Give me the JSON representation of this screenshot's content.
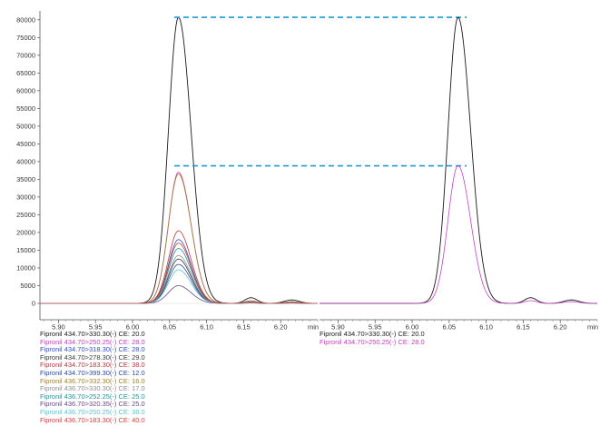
{
  "chart_data": [
    {
      "type": "line",
      "panel": "left",
      "title": "",
      "xlabel": "min",
      "ylabel": "",
      "xlim": [
        5.875,
        6.25
      ],
      "ylim": [
        0,
        82000
      ],
      "x_ticks": [
        "5.90",
        "5.95",
        "6.00",
        "6.05",
        "6.10",
        "6.15",
        "6.20"
      ],
      "x_tick_values": [
        5.9,
        5.95,
        6.0,
        6.05,
        6.1,
        6.15,
        6.2
      ],
      "y_ticks": [
        "0",
        "5000",
        "10000",
        "15000",
        "20000",
        "25000",
        "30000",
        "35000",
        "40000",
        "45000",
        "50000",
        "55000",
        "60000",
        "65000",
        "70000",
        "75000",
        "80000"
      ],
      "y_tick_values": [
        0,
        5000,
        10000,
        15000,
        20000,
        25000,
        30000,
        35000,
        40000,
        45000,
        50000,
        55000,
        60000,
        65000,
        70000,
        75000,
        80000
      ],
      "grid": false,
      "legend_position": "bottom-left",
      "series": [
        {
          "name": "Fipronil 434.70>330.30(-) CE: 20.0",
          "color": "#1a1a1a",
          "peak_rt": 6.062,
          "peak_height": 80700,
          "sigma_left": 0.0135,
          "sigma_right": 0.017
        },
        {
          "name": "Fipronil 434.70>250.25(-) CE: 28.0",
          "color": "#c040c0",
          "peak_rt": 6.062,
          "peak_height": 37000,
          "sigma_left": 0.0135,
          "sigma_right": 0.017
        },
        {
          "name": "Fipronil 434.70>318.30(-) CE: 28.0",
          "color": "#3050c0",
          "peak_rt": 6.062,
          "peak_height": 18000,
          "sigma_left": 0.0135,
          "sigma_right": 0.017
        },
        {
          "name": "Fipronil 434.70>278.30(-) CE: 29.0",
          "color": "#3a3a3a",
          "peak_rt": 6.062,
          "peak_height": 12500,
          "sigma_left": 0.0135,
          "sigma_right": 0.017
        },
        {
          "name": "Fipronil 434.70>183.30(-) CE: 38.0",
          "color": "#b03a3a",
          "peak_rt": 6.062,
          "peak_height": 20500,
          "sigma_left": 0.0135,
          "sigma_right": 0.017
        },
        {
          "name": "Fipronil 434.70>399.30(-) CE: 12.0",
          "color": "#2a4a9a",
          "peak_rt": 6.062,
          "peak_height": 11000,
          "sigma_left": 0.0135,
          "sigma_right": 0.017
        },
        {
          "name": "Fipronil 436.70>332.30(-) CE: 16.0",
          "color": "#a08030",
          "peak_rt": 6.062,
          "peak_height": 36500,
          "sigma_left": 0.0135,
          "sigma_right": 0.017
        },
        {
          "name": "Fipronil 436.70>330.30(-) CE: 17.0",
          "color": "#909090",
          "peak_rt": 6.062,
          "peak_height": 13500,
          "sigma_left": 0.0135,
          "sigma_right": 0.017
        },
        {
          "name": "Fipronil 436.70>252.25(-) CE: 25.0",
          "color": "#20909a",
          "peak_rt": 6.062,
          "peak_height": 15500,
          "sigma_left": 0.0135,
          "sigma_right": 0.017
        },
        {
          "name": "Fipronil 436.70>320.35(-) CE: 25.0",
          "color": "#6a4a8a",
          "peak_rt": 6.062,
          "peak_height": 5000,
          "sigma_left": 0.0135,
          "sigma_right": 0.017
        },
        {
          "name": "Fipronil 436.70>250.25(-) CE: 38.0",
          "color": "#60c0d0",
          "peak_rt": 6.062,
          "peak_height": 9500,
          "sigma_left": 0.0135,
          "sigma_right": 0.017
        },
        {
          "name": "Fipronil 436.70>183.30(-) CE: 40.0",
          "color": "#d04040",
          "peak_rt": 6.062,
          "peak_height": 17000,
          "sigma_left": 0.0135,
          "sigma_right": 0.017
        }
      ],
      "annotations": [
        {
          "type": "dashed-line",
          "y": 80700,
          "color": "#1a9ad6"
        },
        {
          "type": "dashed-line",
          "y": 38800,
          "color": "#1a9ad6"
        }
      ]
    },
    {
      "type": "line",
      "panel": "right",
      "title": "",
      "xlabel": "min",
      "ylabel": "",
      "xlim": [
        5.875,
        6.25
      ],
      "ylim": [
        0,
        82000
      ],
      "x_ticks": [
        "5.90",
        "5.95",
        "6.00",
        "6.05",
        "6.10",
        "6.15",
        "6.20"
      ],
      "x_tick_values": [
        5.9,
        5.95,
        6.0,
        6.05,
        6.1,
        6.15,
        6.2
      ],
      "grid": false,
      "legend_position": "bottom-left",
      "series": [
        {
          "name": "Fipronil 434.70>330.30(-) CE: 20.0",
          "color": "#1a1a1a",
          "peak_rt": 6.062,
          "peak_height": 80700,
          "sigma_left": 0.0135,
          "sigma_right": 0.017
        },
        {
          "name": "Fipronil 434.70>250.25(-) CE: 28.0",
          "color": "#c040c0",
          "peak_rt": 6.062,
          "peak_height": 38800,
          "sigma_left": 0.0135,
          "sigma_right": 0.017
        }
      ]
    }
  ]
}
